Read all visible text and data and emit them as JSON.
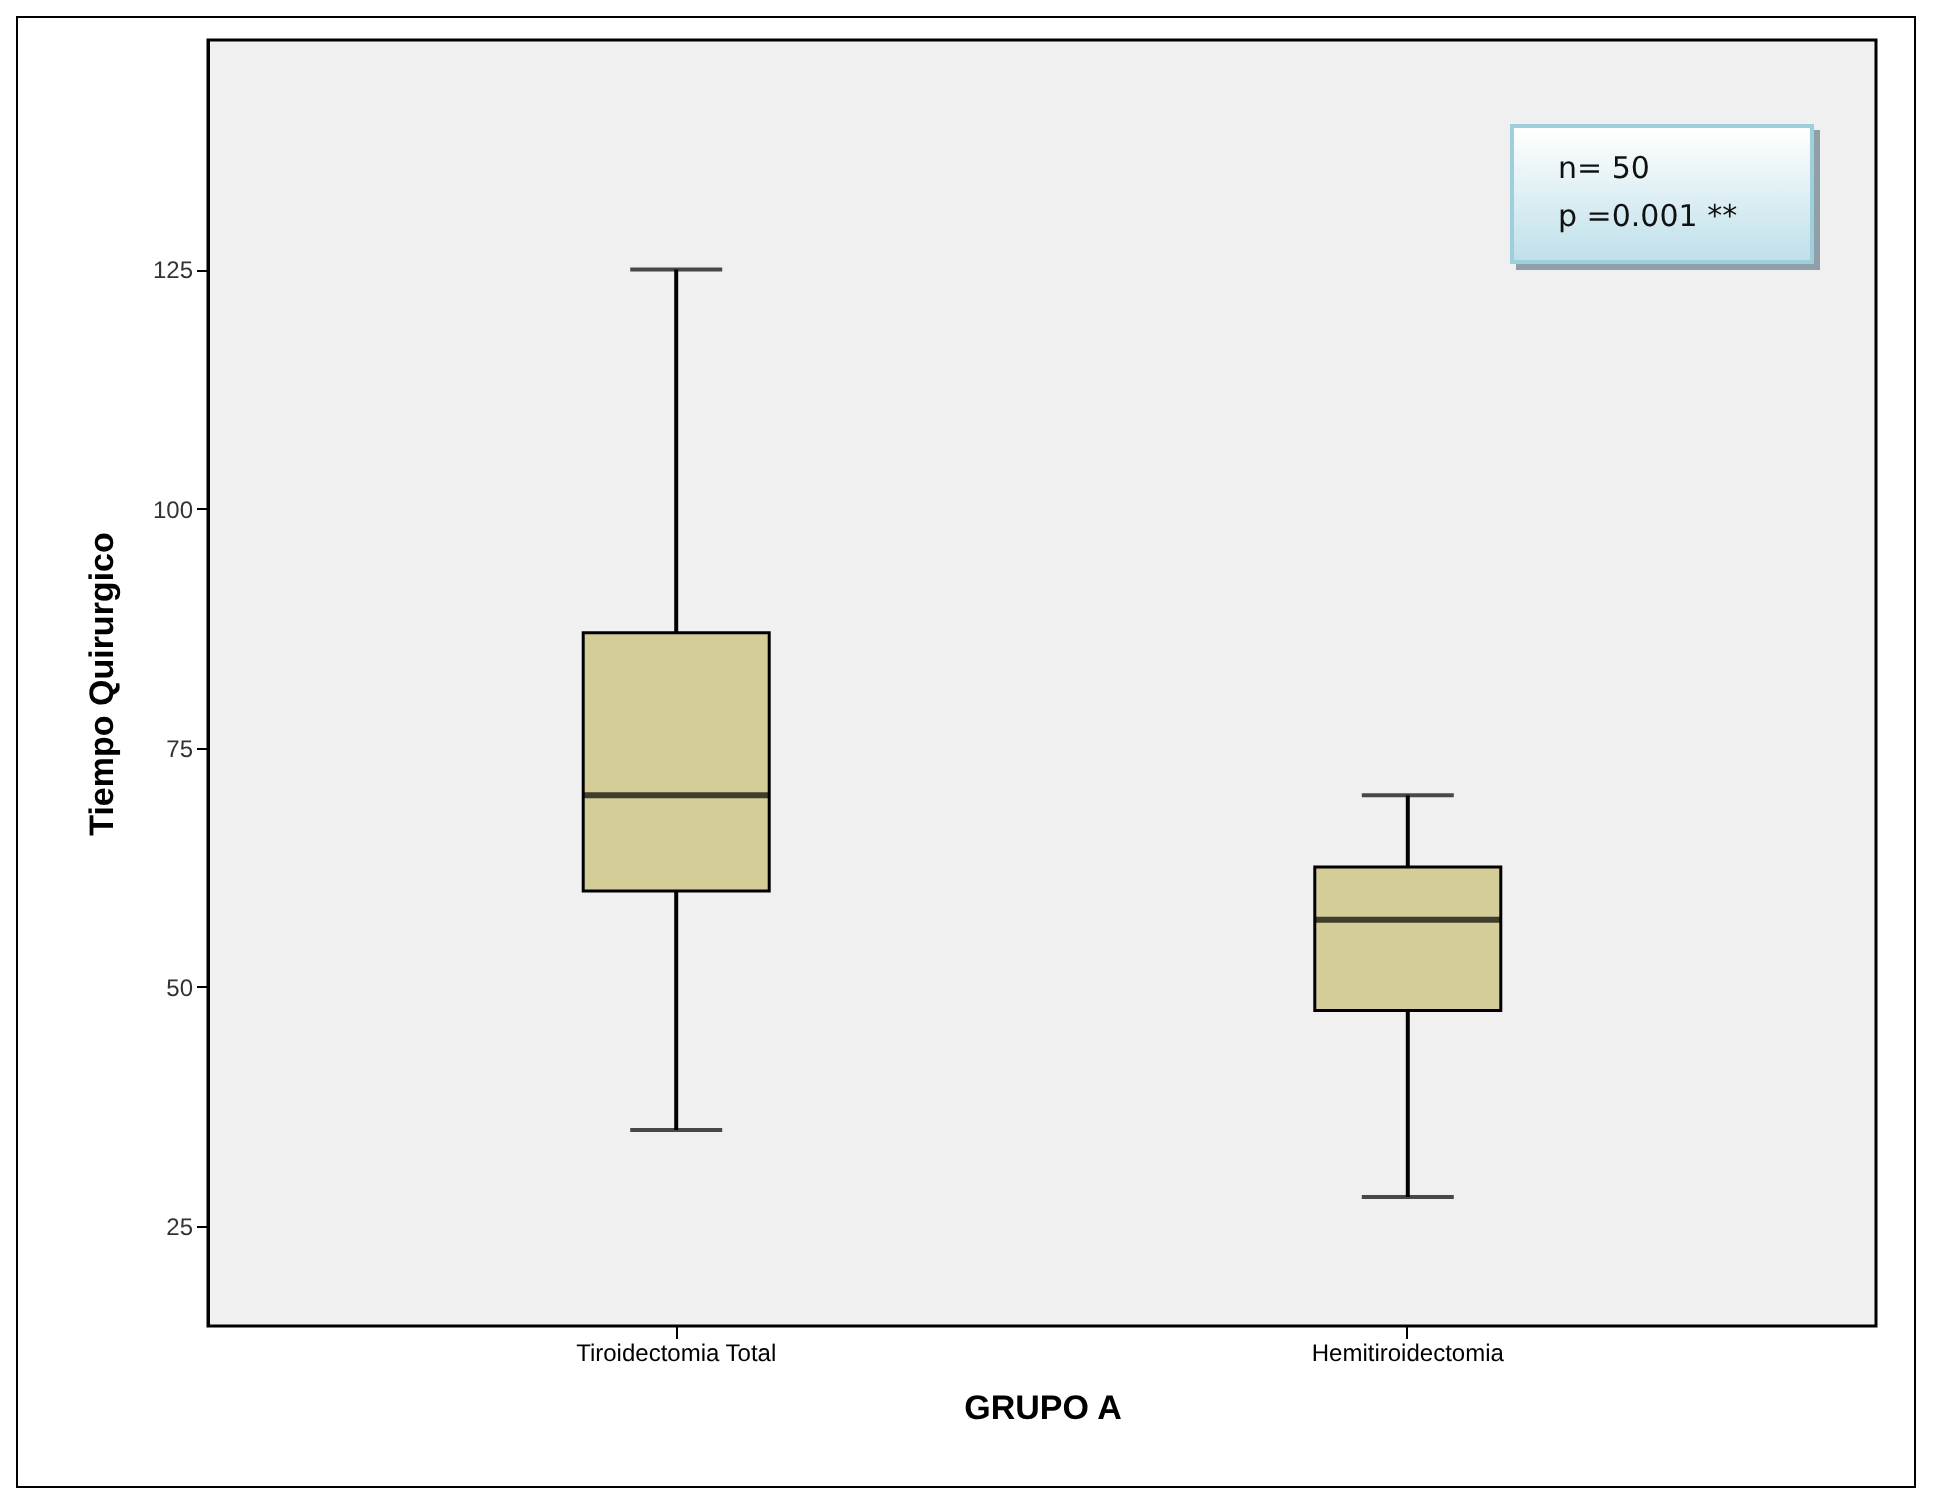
{
  "chart_data": {
    "type": "box",
    "xlabel": "GRUPO A",
    "ylabel": "Tiempo Quirurgico",
    "categories": [
      "Tiroidectomia Total",
      "Hemitiroidectomia"
    ],
    "boxes": [
      {
        "low": 35,
        "q1": 60,
        "median": 70,
        "q3": 87,
        "high": 125
      },
      {
        "low": 28,
        "q1": 47.5,
        "median": 57,
        "q3": 62.5,
        "high": 70
      }
    ],
    "color": "#d4cd98",
    "ylim": [
      14.5,
      149
    ],
    "yticks": [
      25,
      50,
      75,
      100,
      125
    ],
    "annotations": [
      "n= 50",
      "p =0.001 **"
    ]
  }
}
